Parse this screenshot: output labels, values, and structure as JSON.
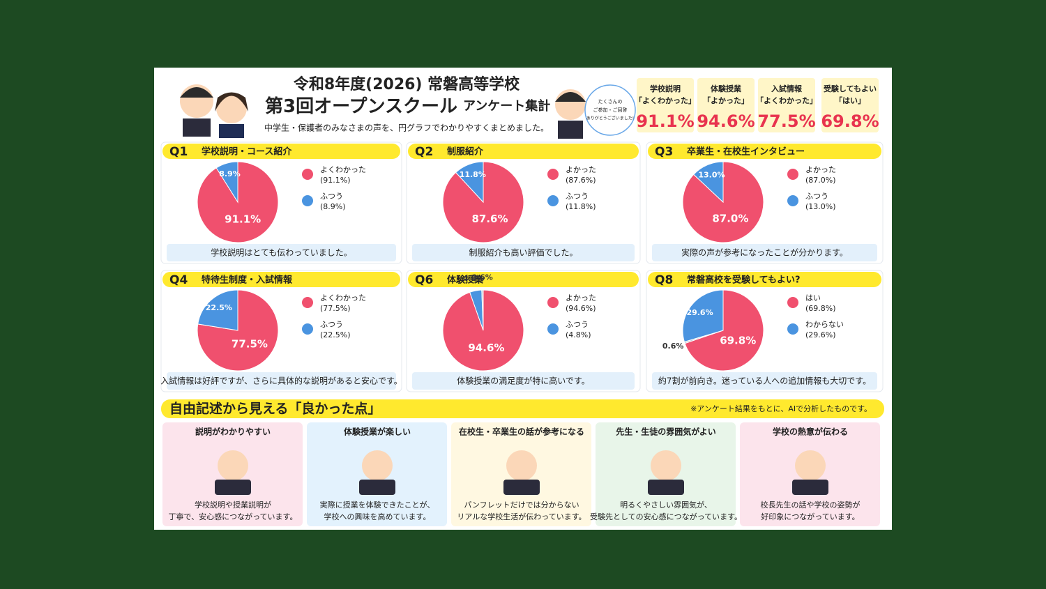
{
  "header": {
    "title_line1": "令和8年度(2026) 常磐高等学校",
    "title_line2_main": "第3回オープンスクール",
    "title_line2_sub": "アンケート集計",
    "subtitle": "中学生・保護者のみなさまの声を、円グラフでわかりやすくまとめました。",
    "bubble": [
      "たくさんの",
      "ご参加・ご回答",
      "ありがとうございました!"
    ]
  },
  "kpis": [
    {
      "line1": "学校説明",
      "line2": "「よくわかった」",
      "value": "91.1%"
    },
    {
      "line1": "体験授業",
      "line2": "「よかった」",
      "value": "94.6%"
    },
    {
      "line1": "入試情報",
      "line2": "「よくわかった」",
      "value": "77.5%"
    },
    {
      "line1": "受験してもよい",
      "line2": "「はい」",
      "value": "69.8%"
    }
  ],
  "chart_data": [
    {
      "type": "pie",
      "label": "Q1",
      "title": "学校説明・コース紹介",
      "categories": [
        "よくわかった",
        "ふつう"
      ],
      "values": [
        91.1,
        8.9
      ],
      "value_labels": [
        "91.1%",
        "8.9%"
      ],
      "legend_labels": [
        "(91.1%)",
        "(8.9%)"
      ],
      "colors": [
        "#f0506e",
        "#4a94e0"
      ],
      "caption": "学校説明はとても伝わっていました。"
    },
    {
      "type": "pie",
      "label": "Q2",
      "title": "制服紹介",
      "categories": [
        "よかった",
        "ふつう"
      ],
      "values": [
        87.6,
        11.8
      ],
      "value_labels": [
        "87.6%",
        "11.8%"
      ],
      "legend_labels": [
        "(87.6%)",
        "(11.8%)"
      ],
      "colors": [
        "#f0506e",
        "#4a94e0"
      ],
      "caption": "制服紹介も高い評価でした。"
    },
    {
      "type": "pie",
      "label": "Q3",
      "title": "卒業生・在校生インタビュー",
      "categories": [
        "よかった",
        "ふつう"
      ],
      "values": [
        87,
        13
      ],
      "value_labels": [
        "87.0%",
        "13.0%"
      ],
      "legend_labels": [
        "(87.0%)",
        "(13.0%)"
      ],
      "colors": [
        "#f0506e",
        "#4a94e0"
      ],
      "caption": "実際の声が参考になったことが分かります。"
    },
    {
      "type": "pie",
      "label": "Q4",
      "title": "特待生制度・入試情報",
      "categories": [
        "よくわかった",
        "ふつう"
      ],
      "values": [
        77.5,
        22.5
      ],
      "value_labels": [
        "77.5%",
        "22.5%"
      ],
      "legend_labels": [
        "(77.5%)",
        "(22.5%)"
      ],
      "colors": [
        "#f0506e",
        "#4a94e0"
      ],
      "caption": "入試情報は好評ですが、さらに具体的な説明があると安心です。"
    },
    {
      "type": "pie",
      "label": "Q6",
      "title": "体験授業",
      "categories": [
        "よかった",
        "ふつう",
        null
      ],
      "values": [
        94.6,
        4.8,
        0.6
      ],
      "value_labels": [
        "94.6%",
        "4.8%",
        "0.6%"
      ],
      "legend_labels": [
        "(94.6%)",
        "(4.8%)",
        null
      ],
      "colors": [
        "#f0506e",
        "#4a94e0",
        "#b8c4d0"
      ],
      "caption": "体験授業の満足度が特に高いです。"
    },
    {
      "type": "pie",
      "label": "Q8",
      "title": "常磐高校を受験してもよい?",
      "categories": [
        "はい",
        null,
        "わからない"
      ],
      "values": [
        69.8,
        0.6,
        29.6
      ],
      "value_labels": [
        "69.8%",
        "0.6%",
        "29.6%"
      ],
      "legend_labels": [
        "(69.8%)",
        null,
        "(29.6%)"
      ],
      "colors": [
        "#f0506e",
        "#b8c4d0",
        "#4a94e0"
      ],
      "caption": "約7割が前向き。迷っている人への追加情報も大切です。"
    }
  ],
  "free_section": {
    "title": "自由記述から見える「良かった点」",
    "note": "※アンケート結果をもとに、AIで分析したものです。",
    "cards": [
      {
        "title": "説明がわかりやすい",
        "lines": [
          "学校説明や授業説明が",
          "丁寧で、安心感につながっています。"
        ]
      },
      {
        "title": "体験授業が楽しい",
        "lines": [
          "実際に授業を体験できたことが、",
          "学校への興味を高めています。"
        ]
      },
      {
        "title": "在校生・卒業生の話が参考になる",
        "lines": [
          "パンフレットだけでは分からない",
          "リアルな学校生活が伝わっています。"
        ]
      },
      {
        "title": "先生・生徒の雰囲気がよい",
        "lines": [
          "明るくやさしい雰囲気が、",
          "受験先としての安心感につながっています。"
        ]
      },
      {
        "title": "学校の熱意が伝わる",
        "lines": [
          "校長先生の話や学校の姿勢が",
          "好印象につながっています。"
        ]
      }
    ]
  }
}
